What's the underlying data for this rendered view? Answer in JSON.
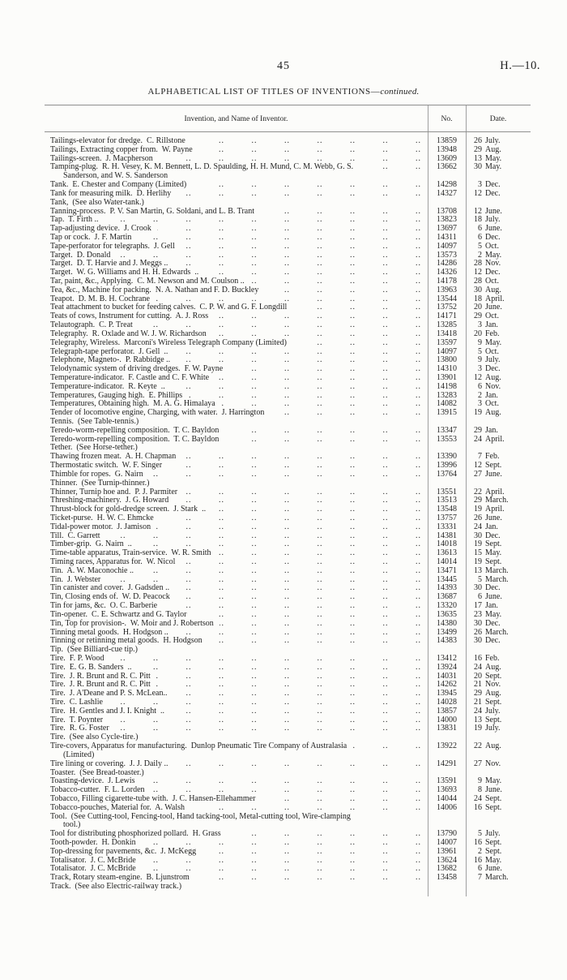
{
  "page": {
    "number": "45",
    "folio": "H.—10."
  },
  "title": {
    "main": "ALPHABETICAL LIST OF TITLES OF INVENTIONS—",
    "italic": "continued."
  },
  "table": {
    "headers": {
      "invention": "Invention, and Name of Inventor.",
      "no": "No.",
      "date": "Date."
    },
    "rows": [
      {
        "t": "Tailings-elevator for dredge.  C. Rillstone",
        "no": "13859",
        "date": "26 July."
      },
      {
        "t": "Tailings, Extracting copper from.  W. Payne",
        "no": "13948",
        "date": "29 Aug."
      },
      {
        "t": "Tailings-screen.  J. Macpherson",
        "no": "13609",
        "date": "13 May."
      },
      {
        "t": "Tamping-plug.  R. H. Vesey, K. M. Bennett, L. D. Spaulding, H. H. Mund, C. M. Webb, G. S.",
        "t2": "Sanderson, and W. S. Sanderson",
        "no": "13662",
        "date": "30 May."
      },
      {
        "t": "Tank.  E. Chester and Company (Limited)",
        "no": "14298",
        "date": "3 Dec."
      },
      {
        "t": "Tank for measuring milk.  D. Herlihy",
        "no": "14327",
        "date": "12 Dec."
      },
      {
        "t": "Tank,  (See also Water-tank.)",
        "no": "",
        "date": ""
      },
      {
        "t": "Tanning-process.  P. V. San Martin, G. Soldani, and L. B. Trant",
        "no": "13708",
        "date": "12 June."
      },
      {
        "t": "Tap.  T. Firth ..",
        "no": "13823",
        "date": "18 July."
      },
      {
        "t": "Tap-adjusting device.  J. Crook",
        "no": "13697",
        "date": "6 June."
      },
      {
        "t": "Tap or cock.  J. F. Martin",
        "no": "14311",
        "date": "6 Dec."
      },
      {
        "t": "Tape-perforator for telegraphs.  J. Gell",
        "no": "14097",
        "date": "5 Oct."
      },
      {
        "t": "Target.  D. Donald",
        "no": "13573",
        "date": "2 May."
      },
      {
        "t": "Target.  D. T. Harvie and J. Meggs ..",
        "no": "14286",
        "date": "28 Nov."
      },
      {
        "t": "Target.  W. G. Williams and H. H. Edwards  ..",
        "no": "14326",
        "date": "12 Dec."
      },
      {
        "t": "Tar, paint, &c., Applying.  C. M. Newson and M. Coulson ..",
        "no": "14178",
        "date": "28 Oct."
      },
      {
        "t": "Tea, &c., Machine for packing.  N. A. Nathan and F. D. Buckley",
        "no": "13963",
        "date": "30 Aug."
      },
      {
        "t": "Teapot.  D. M. B. H. Cochrane",
        "no": "13544",
        "date": "18 April."
      },
      {
        "t": "Teat attachment to bucket for feeding calves.  C. P. W. and G. F. Longdill",
        "no": "13752",
        "date": "20 June."
      },
      {
        "t": "Teats of cows, Instrument for cutting.  A. J. Ross",
        "no": "14171",
        "date": "29 Oct."
      },
      {
        "t": "Telautograph.  C. P. Treat",
        "no": "13285",
        "date": "3 Jan."
      },
      {
        "t": "Telegraphy.  R. Oxlade and W. J. W. Richardson",
        "no": "13418",
        "date": "20 Feb."
      },
      {
        "t": "Telegraphy, Wireless.  Marconi's Wireless Telegraph Company (Limited)",
        "no": "13597",
        "date": "9 May."
      },
      {
        "t": "Telegraph-tape perforator.  J. Gell  ..",
        "no": "14097",
        "date": "5 Oct."
      },
      {
        "t": "Telephone, Magneto-.  P. Rabbidge ..",
        "no": "13800",
        "date": "9 July."
      },
      {
        "t": "Telodynamic system of driving dredges.  F. W. Payne",
        "no": "14310",
        "date": "3 Dec."
      },
      {
        "t": "Temperature-indicator.  F. Castle and C. F. White",
        "no": "13901",
        "date": "12 Aug."
      },
      {
        "t": "Temperature-indicator.  R. Keyte  ..",
        "no": "14198",
        "date": "6 Nov."
      },
      {
        "t": "Temperatures, Gauging high.  E. Phillips",
        "no": "13283",
        "date": "2 Jan."
      },
      {
        "t": "Temperatures, Obtaining high.  M. A. G. Himalaya",
        "no": "14082",
        "date": "3 Oct."
      },
      {
        "t": "Tender of locomotive engine, Charging, with water.  J. Harrington",
        "no": "13915",
        "date": "19 Aug."
      },
      {
        "t": "Tennis.  (See Table-tennis.)",
        "no": "",
        "date": ""
      },
      {
        "t": "Teredo-worm-repelling composition.  T. C. Bayldon",
        "no": "13347",
        "date": "29 Jan."
      },
      {
        "t": "Teredo-worm-repelling composition.  T. C. Bayldon",
        "no": "13553",
        "date": "24 April."
      },
      {
        "t": "Tether.  (See Horse-tether.)",
        "no": "",
        "date": ""
      },
      {
        "t": "Thawing frozen meat.  A. H. Chapman",
        "no": "13390",
        "date": "7 Feb."
      },
      {
        "t": "Thermostatic switch.  W. F. Singer",
        "no": "13996",
        "date": "12 Sept."
      },
      {
        "t": "Thimble for ropes.  G. Nairn",
        "no": "13764",
        "date": "27 June."
      },
      {
        "t": "Thinner.  (See Turnip-thinner.)",
        "no": "",
        "date": ""
      },
      {
        "t": "Thinner, Turnip hoe and.  P. J. Parmiter",
        "no": "13551",
        "date": "22 April."
      },
      {
        "t": "Threshing-machinery.  J. G. Howard",
        "no": "13513",
        "date": "29 March."
      },
      {
        "t": "Thrust-block for gold-dredge screen.  J. Stark  ..",
        "no": "13548",
        "date": "19 April."
      },
      {
        "t": "Ticket-purse.  H. W. C. Ehmcke",
        "no": "13757",
        "date": "26 June."
      },
      {
        "t": "Tidal-power motor.  J. Jamison",
        "no": "13331",
        "date": "24 Jan."
      },
      {
        "t": "Till.  C. Garrett",
        "no": "14381",
        "date": "30 Dec."
      },
      {
        "t": "Timber-grip.  G. Nairn  ..",
        "no": "14018",
        "date": "19 Sept."
      },
      {
        "t": "Time-table apparatus, Train-service.  W. R. Smith",
        "no": "13613",
        "date": "15 May."
      },
      {
        "t": "Timing races, Apparatus for.  W. Nicol",
        "no": "14014",
        "date": "19 Sept."
      },
      {
        "t": "Tin.  A. W. Maconochie ..",
        "no": "13471",
        "date": "13 March."
      },
      {
        "t": "Tin.  J. Webster",
        "no": "13445",
        "date": "5 March."
      },
      {
        "t": "Tin canister and cover.  J. Gadsden ..",
        "no": "14393",
        "date": "30 Dec."
      },
      {
        "t": "Tin, Closing ends of.  W. D. Peacock",
        "no": "13687",
        "date": "6 June."
      },
      {
        "t": "Tin for jams, &c.  O. C. Barberie",
        "no": "13320",
        "date": "17 Jan."
      },
      {
        "t": "Tin-opener.  C. E. Schwartz and G. Taylor",
        "no": "13635",
        "date": "23 May."
      },
      {
        "t": "Tin, Top for provision-.  W. Moir and J. Robertson",
        "no": "14380",
        "date": "30 Dec."
      },
      {
        "t": "Tinning metal goods.  H. Hodgson ..",
        "no": "13499",
        "date": "26 March."
      },
      {
        "t": "Tinning or retinning metal goods.  H. Hodgson",
        "no": "14383",
        "date": "30 Dec."
      },
      {
        "t": "Tip.  (See Billiard-cue tip.)",
        "no": "",
        "date": ""
      },
      {
        "t": "Tire.  F. P. Wood",
        "no": "13412",
        "date": "16 Feb."
      },
      {
        "t": "Tire.  E. G. B. Sanders  ..",
        "no": "13924",
        "date": "24 Aug."
      },
      {
        "t": "Tire.  J. R. Brunt and R. C. Pitt",
        "no": "14031",
        "date": "20 Sept."
      },
      {
        "t": "Tire.  J. R. Brunt and R. C. Pitt",
        "no": "14262",
        "date": "21 Nov."
      },
      {
        "t": "Tire.  J. A'Deane and P. S. McLean..",
        "no": "13945",
        "date": "29 Aug."
      },
      {
        "t": "Tire.  C. Lashlie",
        "no": "14028",
        "date": "21 Sept."
      },
      {
        "t": "Tire.  H. Gentles and J. I. Knight  ..",
        "no": "13857",
        "date": "24 July."
      },
      {
        "t": "Tire.  T. Poynter",
        "no": "14000",
        "date": "13 Sept."
      },
      {
        "t": "Tire.  R. G. Foster",
        "no": "13831",
        "date": "19 July."
      },
      {
        "t": "Tire.  (See also Cycle-tire.)",
        "no": "",
        "date": ""
      },
      {
        "t": "Tire-covers, Apparatus for manufacturing.  Dunlop Pneumatic Tire Company of Australasia",
        "t2": "(Limited)",
        "no": "13922",
        "date": "22 Aug."
      },
      {
        "t": "Tire lining or covering.  J. J. Daily ..",
        "no": "14291",
        "date": "27 Nov."
      },
      {
        "t": "Toaster.  (See Bread-toaster.)",
        "no": "",
        "date": ""
      },
      {
        "t": "Toasting-device.  J. Lewis",
        "no": "13591",
        "date": "9 May."
      },
      {
        "t": "Tobacco-cutter.  F. L. Lorden",
        "no": "13693",
        "date": "8 June."
      },
      {
        "t": "Tobacco, Filling cigarette-tube with.  J. C. Hansen-Ellehammer",
        "no": "14044",
        "date": "24 Sept."
      },
      {
        "t": "Tobacco-pouches, Material for.  A. Walsh",
        "no": "14006",
        "date": "16 Sept."
      },
      {
        "t": "Tool.  (See Cutting-tool, Fencing-tool, Hand tacking-tool, Metal-cutting tool, Wire-clamping",
        "t2": "tool.)",
        "no": "",
        "date": ""
      },
      {
        "t": "Tool for distributing phosphorized pollard.  H. Grass",
        "no": "13790",
        "date": "5 July."
      },
      {
        "t": "Tooth-powder.  H. Donkin",
        "no": "14007",
        "date": "16 Sept."
      },
      {
        "t": "Top-dressing for pavements, &c.  J. McKegg",
        "no": "13961",
        "date": "2 Sept."
      },
      {
        "t": "Totalisator.  J. C. McBride",
        "no": "13624",
        "date": "16 May."
      },
      {
        "t": "Totalisator.  J. C. McBride",
        "no": "13682",
        "date": "6 June."
      },
      {
        "t": "Track, Rotary steam-engine.  B. Ljunstrom",
        "no": "13458",
        "date": "7 March."
      },
      {
        "t": "Track.  (See also Electric-railway track.)",
        "no": "",
        "date": ""
      }
    ]
  }
}
